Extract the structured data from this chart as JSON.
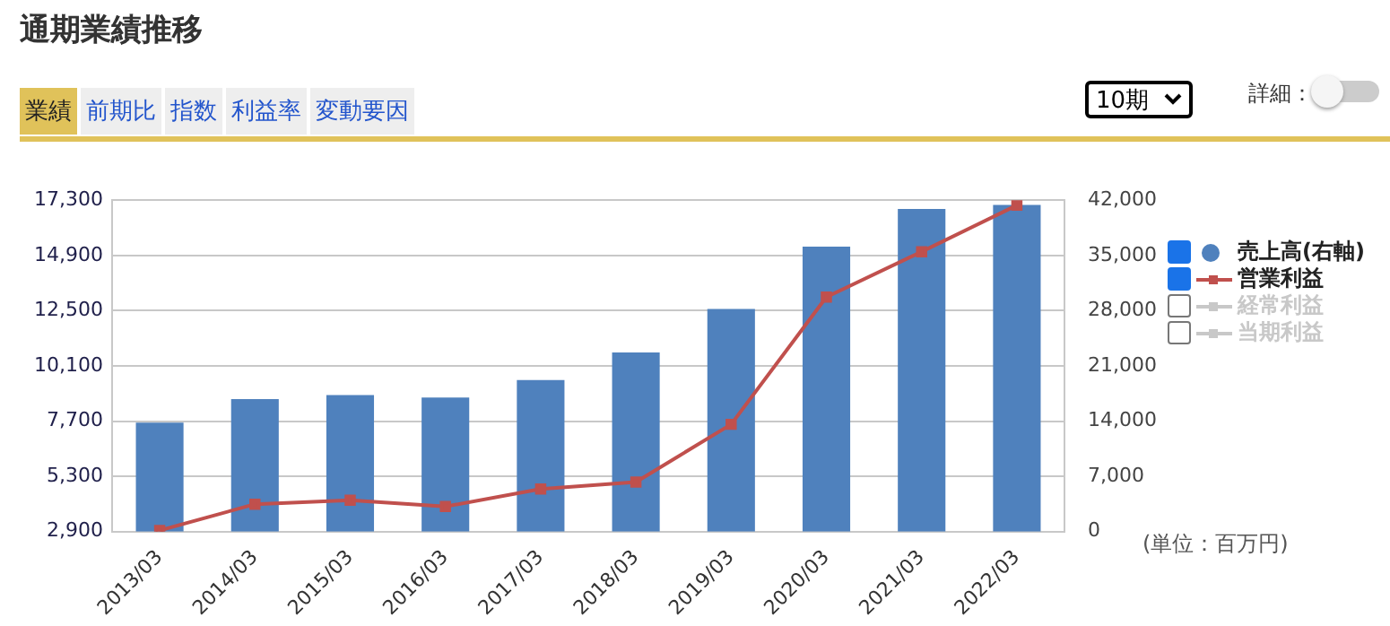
{
  "chart_data": {
    "type": "bar",
    "title": "通期業績推移",
    "categories": [
      "2013/03",
      "2014/03",
      "2015/03",
      "2016/03",
      "2017/03",
      "2018/03",
      "2019/03",
      "2020/03",
      "2021/03",
      "2022/03"
    ],
    "series": [
      {
        "name": "売上高(右軸)",
        "axis": "y2",
        "color": "#4f81bd",
        "values": [
          13800,
          16800,
          17300,
          17000,
          19200,
          22700,
          28200,
          36100,
          40900,
          41400
        ]
      },
      {
        "name": "営業利益",
        "type": "line",
        "color": "#c0504d",
        "marker": "square",
        "values": [
          2950,
          4090,
          4260,
          3990,
          4750,
          5050,
          7560,
          13090,
          15060,
          17080
        ]
      },
      {
        "name": "経常利益",
        "type": "line",
        "color": "#c8c8c8",
        "values": [
          null,
          null,
          null,
          null,
          null,
          null,
          null,
          null,
          null,
          null
        ]
      },
      {
        "name": "当期利益",
        "type": "line",
        "color": "#c8c8c8",
        "values": [
          null,
          null,
          null,
          null,
          null,
          null,
          null,
          null,
          null,
          null
        ]
      }
    ],
    "ylim": [
      2900,
      17300
    ],
    "yticks": [
      {
        "value": 2900,
        "label": "2,900"
      },
      {
        "value": 5300,
        "label": "5,300"
      },
      {
        "value": 7700,
        "label": "7,700"
      },
      {
        "value": 10100,
        "label": "10,100"
      },
      {
        "value": 12500,
        "label": "12,500"
      },
      {
        "value": 14900,
        "label": "14,900"
      },
      {
        "value": 17300,
        "label": "17,300"
      }
    ],
    "y2lim": [
      0,
      42000
    ],
    "y2ticks": [
      0,
      {
        "value": 7000,
        "label": "7,000"
      },
      {
        "value": 14000,
        "label": "14,000"
      },
      {
        "value": 21000,
        "label": "21,000"
      },
      {
        "value": 28000,
        "label": "28,000"
      },
      {
        "value": 35000,
        "label": "35,000"
      },
      {
        "value": 42000,
        "label": "42,000"
      }
    ],
    "grid": "y",
    "legend": "right",
    "annotations": [
      "業績",
      "前期比",
      "指数",
      "利益率",
      "変動要因",
      "10期",
      "詳細：",
      "(単位：百万円)"
    ]
  }
}
